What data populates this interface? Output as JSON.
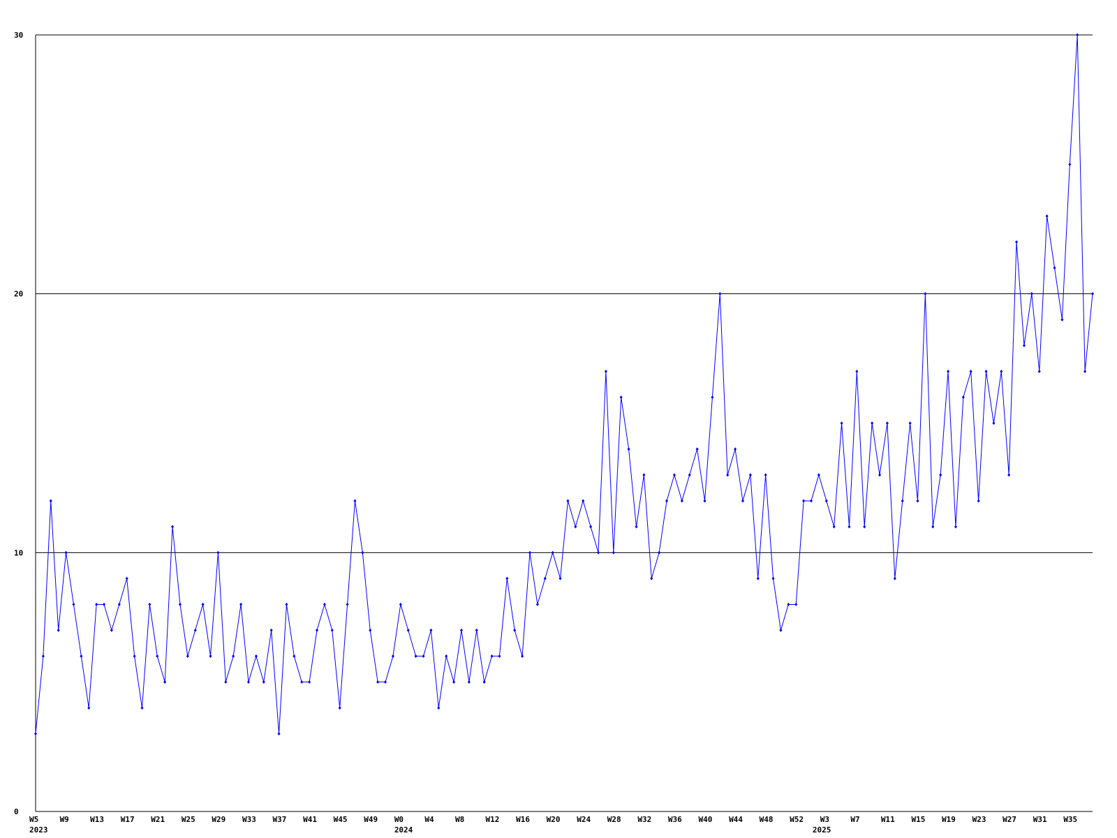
{
  "chart_data": {
    "type": "line",
    "categories": [
      "W5",
      null,
      null,
      null,
      "W9",
      null,
      null,
      null,
      "W13",
      null,
      null,
      null,
      "W17",
      null,
      null,
      null,
      "W21",
      null,
      null,
      null,
      "W25",
      null,
      null,
      null,
      "W29",
      null,
      null,
      null,
      "W33",
      null,
      null,
      null,
      "W37",
      null,
      null,
      null,
      "W41",
      null,
      null,
      null,
      "W45",
      null,
      null,
      null,
      "W49",
      null,
      null,
      null,
      "W0",
      null,
      null,
      null,
      "W4",
      null,
      null,
      null,
      "W8",
      null,
      null,
      null,
      "W12",
      null,
      null,
      null,
      "W16",
      null,
      null,
      null,
      "W20",
      null,
      null,
      null,
      "W24",
      null,
      null,
      null,
      "W28",
      null,
      null,
      null,
      "W32",
      null,
      null,
      null,
      "W36",
      null,
      null,
      null,
      "W40",
      null,
      null,
      null,
      "W44",
      null,
      null,
      null,
      "W48",
      null,
      null,
      null,
      "W52",
      null,
      null,
      null,
      "W3",
      null,
      null,
      null,
      "W7",
      null,
      null,
      null,
      "W11",
      null,
      null,
      null,
      "W15",
      null,
      null,
      null,
      "W19",
      null,
      null,
      null,
      "W23",
      null,
      null,
      null,
      "W27",
      null,
      null,
      null,
      "W31",
      null,
      null,
      null,
      "W35",
      null,
      null,
      null
    ],
    "year_labels": [
      "2023",
      null,
      null,
      null,
      null,
      null,
      null,
      null,
      null,
      null,
      null,
      null,
      null,
      null,
      null,
      null,
      null,
      null,
      null,
      null,
      null,
      null,
      null,
      null,
      null,
      null,
      null,
      null,
      null,
      null,
      null,
      null,
      null,
      null,
      null,
      null,
      null,
      null,
      null,
      null,
      null,
      null,
      null,
      null,
      null,
      null,
      null,
      null,
      "2024",
      null,
      null,
      null,
      null,
      null,
      null,
      null,
      null,
      null,
      null,
      null,
      null,
      null,
      null,
      null,
      null,
      null,
      null,
      null,
      null,
      null,
      null,
      null,
      null,
      null,
      null,
      null,
      null,
      null,
      null,
      null,
      null,
      null,
      null,
      null,
      null,
      null,
      null,
      null,
      null,
      null,
      null,
      null,
      null,
      null,
      null,
      null,
      null,
      null,
      null,
      null,
      null,
      null,
      null,
      "2025",
      null,
      null,
      null,
      null,
      null,
      null,
      null,
      null,
      null,
      null,
      null,
      null,
      null,
      null,
      null,
      null,
      null,
      null,
      null,
      null,
      null,
      null,
      null,
      null,
      null,
      null,
      null,
      null,
      null,
      null,
      null,
      null,
      null,
      null,
      null,
      null,
      null,
      null
    ],
    "series": [
      {
        "color": "#0000ff",
        "values": [
          3,
          6,
          12,
          7,
          10,
          8,
          6,
          4,
          8,
          8,
          7,
          8,
          9,
          6,
          4,
          8,
          6,
          5,
          11,
          8,
          6,
          7,
          8,
          6,
          10,
          5,
          6,
          8,
          5,
          6,
          5,
          7,
          3,
          8,
          6,
          5,
          5,
          7,
          8,
          7,
          4,
          8,
          12,
          10,
          7,
          5,
          5,
          6,
          8,
          7,
          6,
          6,
          7,
          4,
          6,
          5,
          7,
          5,
          7,
          5,
          6,
          6,
          9,
          7,
          6,
          10,
          8,
          9,
          10,
          9,
          12,
          11,
          12,
          11,
          10,
          17,
          10,
          16,
          14,
          11,
          13,
          9,
          10,
          12,
          13,
          12,
          13,
          14,
          12,
          16,
          20,
          13,
          14,
          12,
          13,
          9,
          13,
          9,
          7,
          8,
          8,
          12,
          12,
          13,
          12,
          11,
          15,
          11,
          17,
          11,
          15,
          13,
          15,
          9,
          12,
          15,
          12,
          20,
          11,
          13,
          17,
          11,
          16,
          17,
          12,
          17,
          15,
          17,
          13,
          22,
          18,
          20,
          17,
          23,
          21,
          19,
          25,
          30,
          17,
          20
        ]
      }
    ],
    "ylim": [
      0,
      30
    ],
    "yticks": [
      0,
      10,
      20,
      30
    ],
    "grid": true
  }
}
